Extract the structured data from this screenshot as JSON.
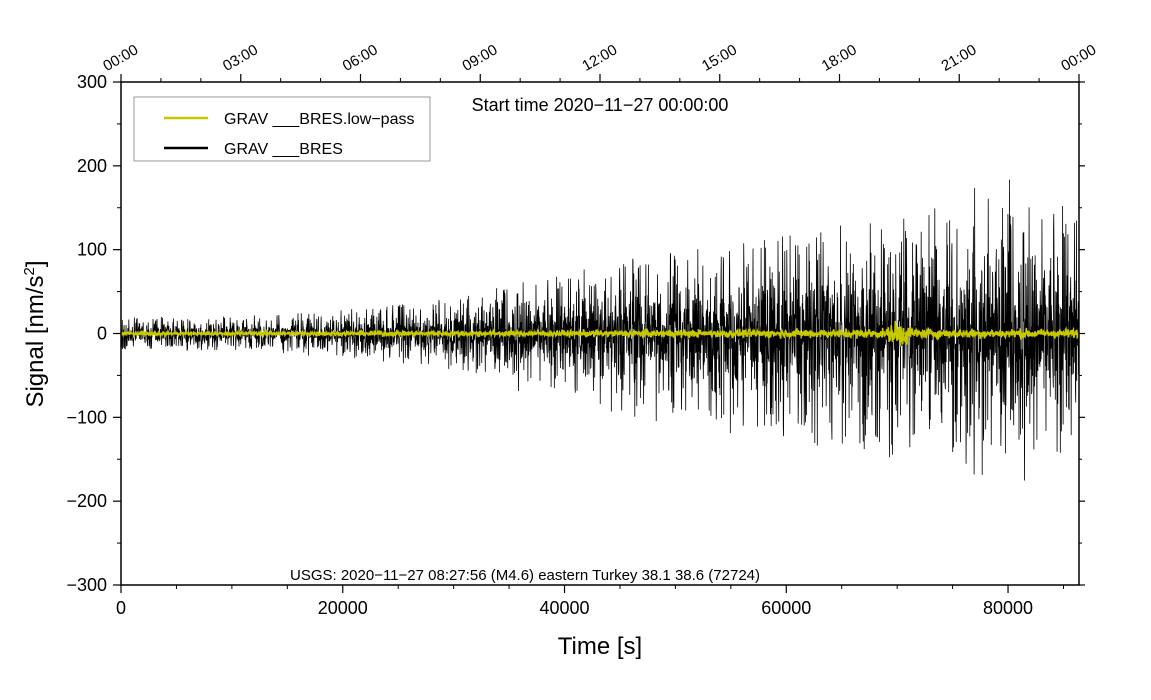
{
  "chart_data": {
    "type": "line",
    "xlabel": "Time [s]",
    "ylabel_main": "Signal [nm/s",
    "ylabel_sup": "2",
    "ylabel_tail": "]",
    "xlim": [
      0,
      86400
    ],
    "ylim": [
      -300,
      300
    ],
    "x_ticks": [
      0,
      20000,
      40000,
      60000,
      80000
    ],
    "x_tick_labels": [
      "0",
      "20000",
      "40000",
      "60000",
      "80000"
    ],
    "y_ticks": [
      300,
      200,
      100,
      0,
      -100,
      -200,
      -300
    ],
    "y_tick_labels": [
      "300",
      "200",
      "100",
      "0",
      "−100",
      "−200",
      "−300"
    ],
    "top_ticks": [
      0,
      10800,
      21600,
      32400,
      43200,
      54000,
      64800,
      75600,
      86400
    ],
    "top_tick_labels": [
      "00:00",
      "03:00",
      "06:00",
      "09:00",
      "12:00",
      "15:00",
      "18:00",
      "21:00",
      "00:00"
    ],
    "start_time_text": "Start time 2020−11−27 00:00:00",
    "event_text": "USGS: 2020−11−27 08:27:56 (M4.6) eastern Turkey 38.1 38.6 (72724)",
    "series": [
      {
        "name": "GRAV ___BRES.low−pass",
        "color": "#c8c800",
        "envelope_x": [
          0,
          10000,
          20000,
          30000,
          40000,
          50000,
          60000,
          69000,
          70200,
          71500,
          80000,
          86400
        ],
        "envelope_amp": [
          2,
          2,
          2.5,
          3,
          3.5,
          4,
          4.5,
          5,
          18,
          5,
          5,
          5
        ]
      },
      {
        "name": "GRAV ___BRES",
        "color": "#000000",
        "envelope_x": [
          0,
          10000,
          20000,
          30000,
          40000,
          50000,
          60000,
          70000,
          80000,
          86400
        ],
        "envelope_amp": [
          11,
          12,
          16,
          24,
          40,
          56,
          68,
          76,
          84,
          84
        ],
        "spike_max": [
          18,
          20,
          27,
          42,
          70,
          100,
          120,
          135,
          195,
          140
        ],
        "spike_min": [
          -18,
          -20,
          -28,
          -40,
          -90,
          -110,
          -150,
          -150,
          -188,
          -140
        ]
      }
    ]
  }
}
